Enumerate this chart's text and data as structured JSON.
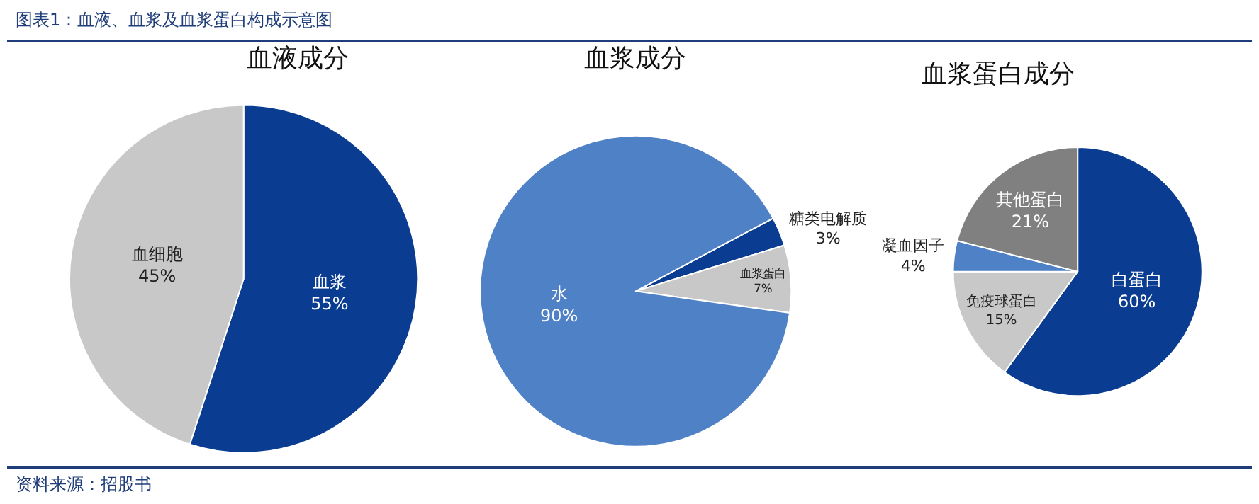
{
  "chart_data": [
    {
      "type": "pie",
      "title": "血液成分",
      "categories": [
        "血浆",
        "血细胞"
      ],
      "values": [
        55,
        45
      ],
      "value_labels": [
        "55%",
        "45%"
      ],
      "colors": [
        "#0a3d91",
        "#c8c8c8"
      ],
      "annotations": [
        "图表1：血液、血浆及血浆蛋白构成示意图",
        "资料来源：招股书"
      ]
    },
    {
      "type": "pie",
      "title": "血浆成分",
      "categories": [
        "糖类电解质",
        "血浆蛋白",
        "水"
      ],
      "values": [
        3,
        7,
        90
      ],
      "value_labels": [
        "3%",
        "7%",
        "90%"
      ],
      "colors": [
        "#0a3d91",
        "#c8c8c8",
        "#4f81c7"
      ]
    },
    {
      "type": "pie",
      "title": "血浆蛋白成分",
      "categories": [
        "白蛋白",
        "免疫球蛋白",
        "凝血因子",
        "其他蛋白"
      ],
      "values": [
        60,
        15,
        4,
        21
      ],
      "value_labels": [
        "60%",
        "15%",
        "4%",
        "21%"
      ],
      "colors": [
        "#0a3d91",
        "#c8c8c8",
        "#4f81c7",
        "#808080"
      ]
    }
  ]
}
